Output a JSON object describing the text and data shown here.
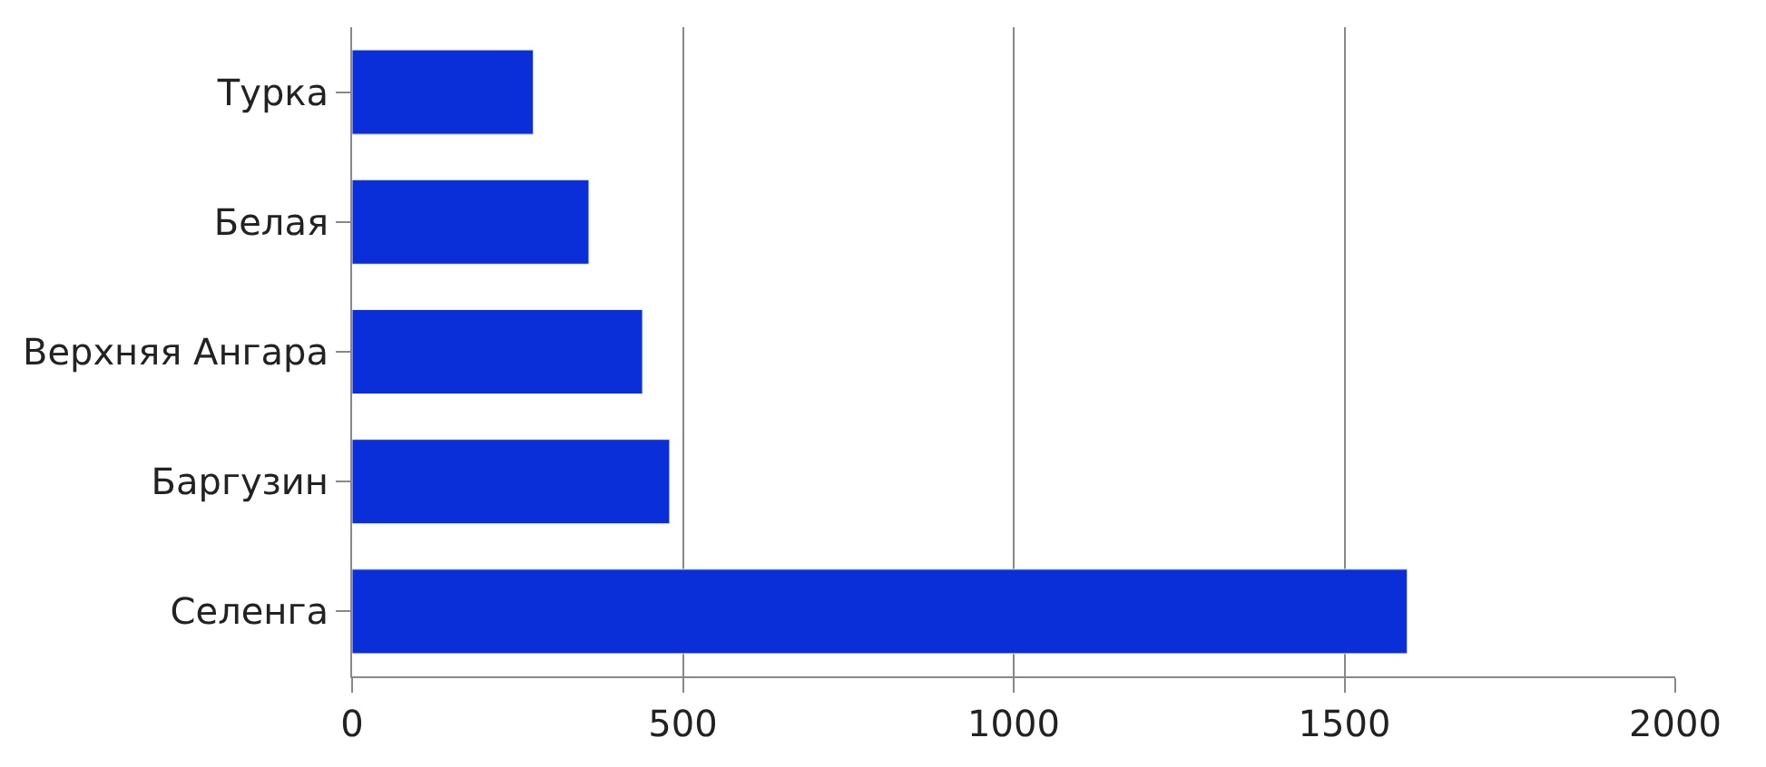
{
  "chart_data": {
    "type": "bar",
    "orientation": "horizontal",
    "categories": [
      "Турка",
      "Белая",
      "Верхняя Ангара",
      "Баргузин",
      "Селенга"
    ],
    "values": [
      274,
      358,
      439,
      480,
      1595
    ],
    "color": "#0a2fd8",
    "xlim": [
      0,
      2000
    ],
    "xticks": [
      0,
      500,
      1000,
      1500,
      2000
    ],
    "grid": "x"
  }
}
